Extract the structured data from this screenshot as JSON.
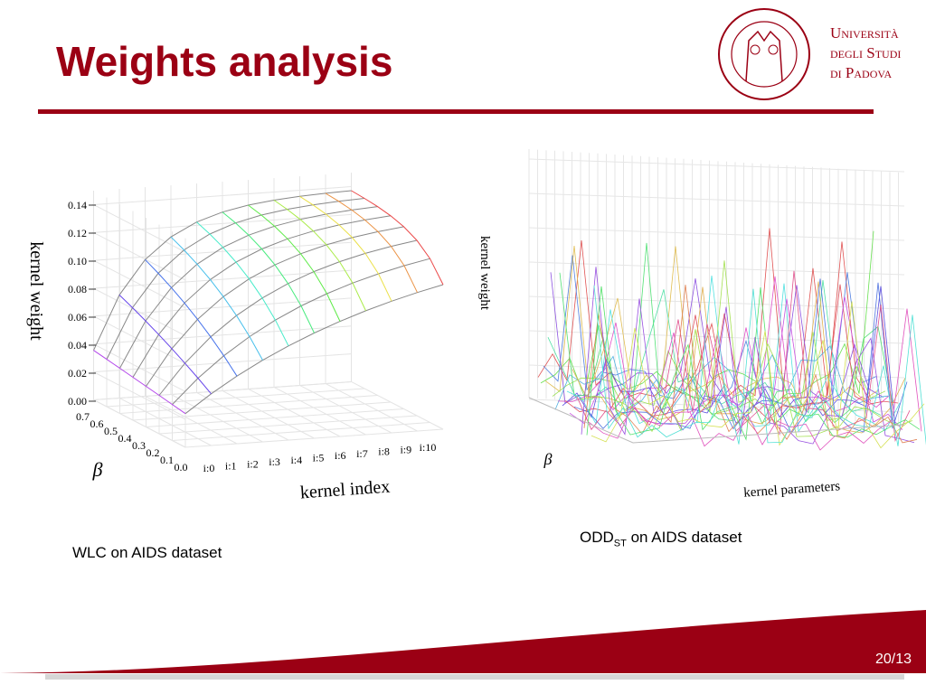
{
  "header": {
    "title": "Weights analysis",
    "logo": {
      "line1": "Università",
      "line2": "degli Studi",
      "line3": "di Padova"
    }
  },
  "figures": [
    {
      "z_label": "kernel weight",
      "z_ticks": [
        "0.00",
        "0.02",
        "0.04",
        "0.06",
        "0.08",
        "0.10",
        "0.12",
        "0.14"
      ],
      "beta_label": "β",
      "beta_ticks": [
        "0.0",
        "0.1",
        "0.2",
        "0.3",
        "0.4",
        "0.5",
        "0.6",
        "0.7"
      ],
      "x_label": "kernel index",
      "x_ticks": [
        "i:0",
        "i:1",
        "i:2",
        "i:3",
        "i:4",
        "i:5",
        "i:6",
        "i:7",
        "i:8",
        "i:9",
        "i:10"
      ],
      "caption": "WLC on AIDS dataset"
    },
    {
      "z_label": "kernel weight",
      "beta_label": "β",
      "x_label": "kernel parameters",
      "caption_main": "ODD",
      "caption_sub": "ST",
      "caption_rest": " on AIDS dataset"
    }
  ],
  "footer": {
    "page": "20/13"
  }
}
